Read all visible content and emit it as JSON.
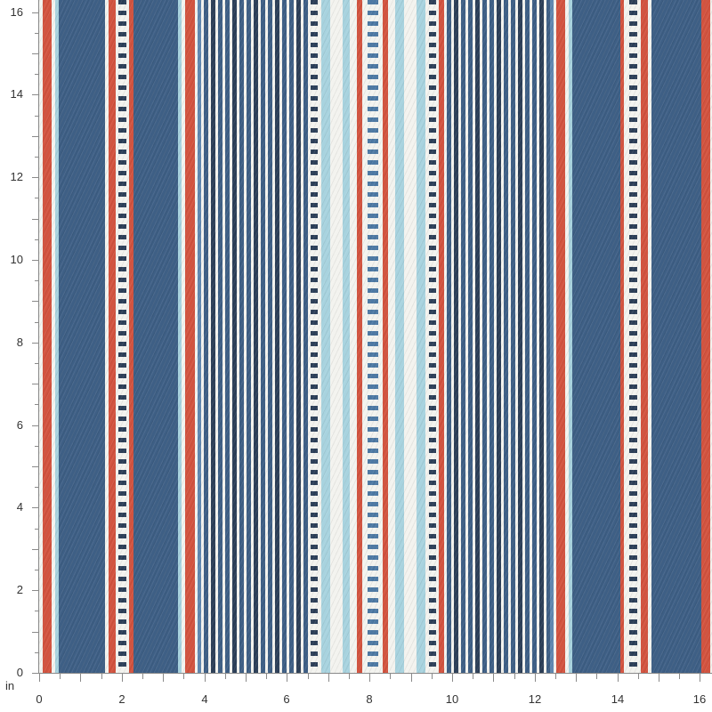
{
  "image": {
    "subject": "striped-fabric-swatch",
    "colors": {
      "navy": "#3e5f85",
      "deep_navy": "#2c3f58",
      "red": "#d2533f",
      "white": "#f3f3ef",
      "light_blue": "#a8d3df",
      "mid_blue": "#5f87b0"
    }
  },
  "ruler": {
    "unit_label": "in",
    "y_ticks": [
      "0",
      "2",
      "4",
      "6",
      "8",
      "10",
      "12",
      "14",
      "16"
    ],
    "x_ticks": [
      "0",
      "2",
      "4",
      "6",
      "8",
      "10",
      "12",
      "14",
      "16"
    ]
  }
}
